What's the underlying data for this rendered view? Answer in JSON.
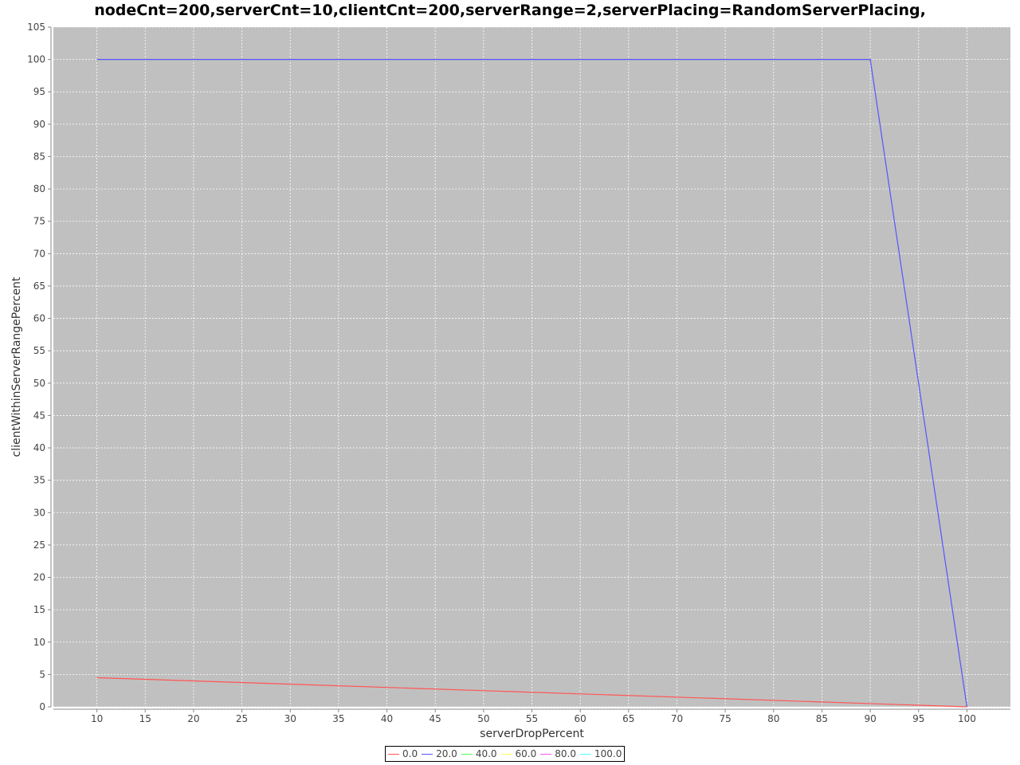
{
  "chart_data": {
    "type": "line",
    "title": "nodeCnt=200,serverCnt=10,clientCnt=200,serverRange=2,serverPlacing=RandomServerPlacing,",
    "xlabel": "serverDropPercent",
    "ylabel": "clientWithinServerRangePercent",
    "xlim": [
      5.5,
      104.5
    ],
    "ylim": [
      0,
      105
    ],
    "x_ticks": [
      10,
      15,
      20,
      25,
      30,
      35,
      40,
      45,
      50,
      55,
      60,
      65,
      70,
      75,
      80,
      85,
      90,
      95,
      100
    ],
    "y_ticks": [
      0,
      5,
      10,
      15,
      20,
      25,
      30,
      35,
      40,
      45,
      50,
      55,
      60,
      65,
      70,
      75,
      80,
      85,
      90,
      95,
      100,
      105
    ],
    "grid": true,
    "background": "#c0c0c0",
    "gridline_color": "#ffffff",
    "legend_position": "bottom",
    "series": [
      {
        "name": "0.0",
        "color": "#ff5555",
        "x": [
          10,
          90,
          100
        ],
        "y": [
          4.5,
          0.5,
          0
        ]
      },
      {
        "name": "20.0",
        "color": "#5555ff",
        "x": [
          10,
          90,
          100
        ],
        "y": [
          100,
          100,
          0
        ]
      },
      {
        "name": "40.0",
        "color": "#55ff55",
        "x": [],
        "y": []
      },
      {
        "name": "60.0",
        "color": "#ffff55",
        "x": [],
        "y": []
      },
      {
        "name": "80.0",
        "color": "#ff55ff",
        "x": [],
        "y": []
      },
      {
        "name": "100.0",
        "color": "#55ffff",
        "x": [],
        "y": []
      }
    ]
  }
}
